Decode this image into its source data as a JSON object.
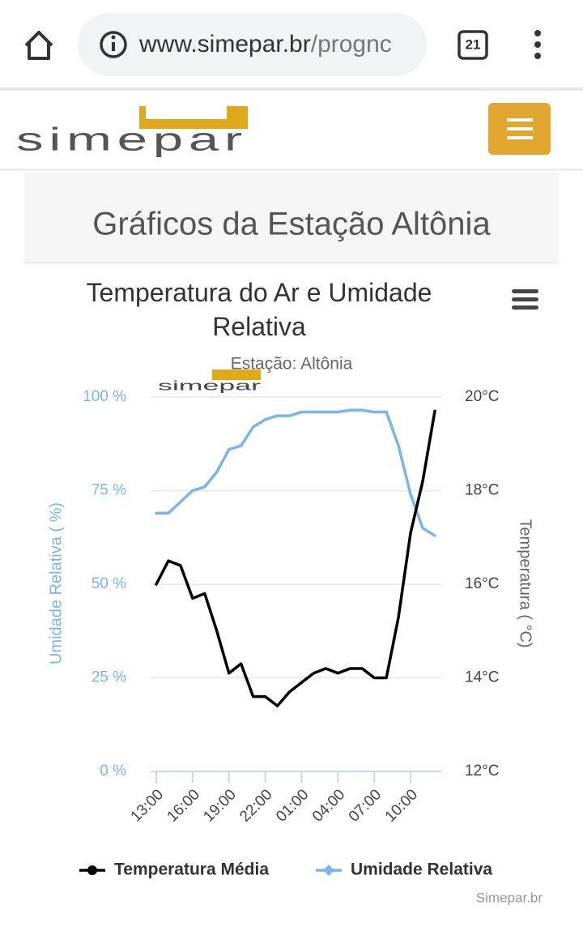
{
  "browser": {
    "url_host": "www.simepar.br",
    "url_path": "/prognc",
    "tab_count": "21"
  },
  "site": {
    "logo": "simepar",
    "page_title": "Gráficos da Estação Altônia"
  },
  "chart_data": {
    "type": "line",
    "title": "Temperatura do Ar e Umidade Relativa",
    "subtitle": "Estação: Altônia",
    "credits": "Simepar.br",
    "ylabel": "Umidade Relativa ( %)",
    "y2label": "Temperatura ( °C)",
    "categories": [
      "13:00",
      null,
      null,
      "16:00",
      null,
      null,
      "19:00",
      null,
      null,
      "22:00",
      null,
      null,
      "01:00",
      null,
      null,
      "04:00",
      null,
      null,
      "07:00",
      null,
      null,
      "10:00",
      null,
      null
    ],
    "series": [
      {
        "name": "Temperatura Média",
        "color": "#000000",
        "axis": "y2",
        "values": [
          16.0,
          16.5,
          16.4,
          15.7,
          15.8,
          15.0,
          14.1,
          14.3,
          13.6,
          13.6,
          13.4,
          13.7,
          13.9,
          14.1,
          14.2,
          14.1,
          14.2,
          14.2,
          14.0,
          14.0,
          15.3,
          17.1,
          18.2,
          19.7
        ]
      },
      {
        "name": "Umidade Relativa",
        "color": "#7cb5ec",
        "values": [
          69,
          69,
          72,
          75,
          76,
          80,
          86,
          87,
          92,
          94,
          95,
          95,
          96,
          96,
          96,
          96,
          96.5,
          96.5,
          96,
          96,
          87,
          74,
          65,
          63
        ]
      }
    ],
    "ylim": [
      0,
      100
    ],
    "yticks": [
      {
        "value": 0,
        "label": "0 %"
      },
      {
        "value": 25,
        "label": "25 %"
      },
      {
        "value": 50,
        "label": "50 %"
      },
      {
        "value": 75,
        "label": "75 %"
      },
      {
        "value": 100,
        "label": "100 %"
      }
    ],
    "y2lim": [
      12,
      20
    ],
    "y2ticks": [
      {
        "value": 12,
        "label": "12°C"
      },
      {
        "value": 14,
        "label": "14°C"
      },
      {
        "value": 16,
        "label": "16°C"
      },
      {
        "value": 18,
        "label": "18°C"
      },
      {
        "value": 20,
        "label": "20°C"
      }
    ],
    "grid": true
  }
}
